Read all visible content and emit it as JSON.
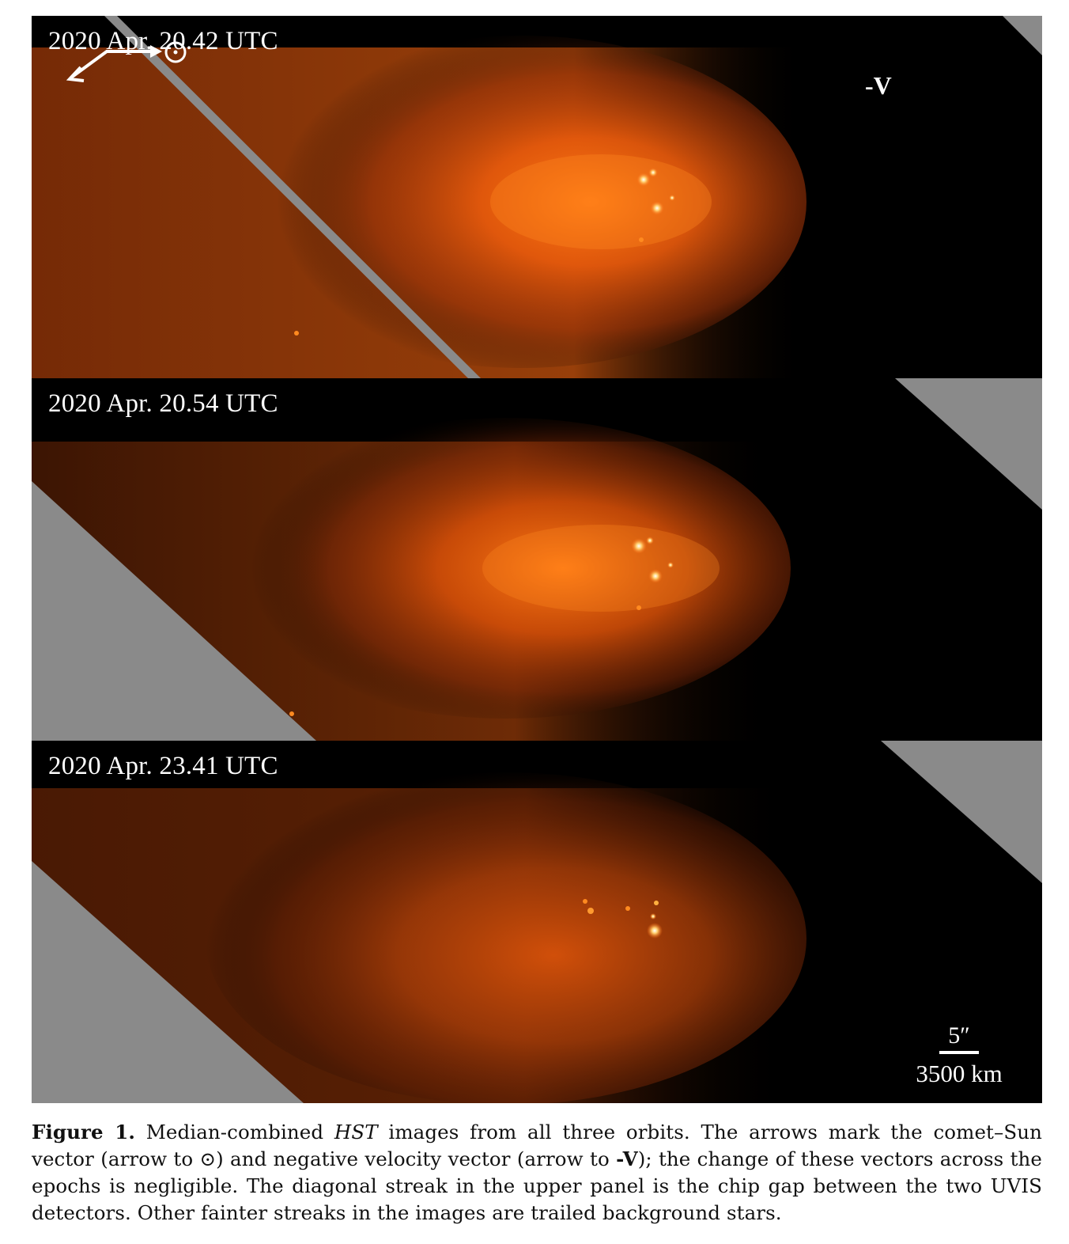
{
  "figure": {
    "panels": [
      {
        "epoch": "2020 Apr. 20.42 UTC"
      },
      {
        "epoch": "2020 Apr. 20.54 UTC"
      },
      {
        "epoch": "2020 Apr. 23.41 UTC"
      }
    ],
    "orientation": {
      "velocity_label": "-V",
      "sun_symbol": "⊙"
    },
    "scale_bar": {
      "angular": "5″",
      "physical": "3500 km"
    },
    "colors": {
      "coma": "#ff6a10",
      "nucleus": "#ffffff",
      "gap": "#8a8a8a",
      "sky": "#000000"
    }
  },
  "caption": {
    "label": "Figure 1.",
    "text_1": " Median-combined ",
    "hst": "HST",
    "text_2": " images from all three orbits. The arrows mark the comet–Sun vector (arrow to ⊙) and negative velocity vector (arrow to ",
    "bold_v": "-V",
    "text_3": "); the change of these vectors across the epochs is negligible. The diagonal streak in the upper panel is the chip gap between the two UVIS detectors. Other fainter streaks in the images are trailed background stars."
  }
}
